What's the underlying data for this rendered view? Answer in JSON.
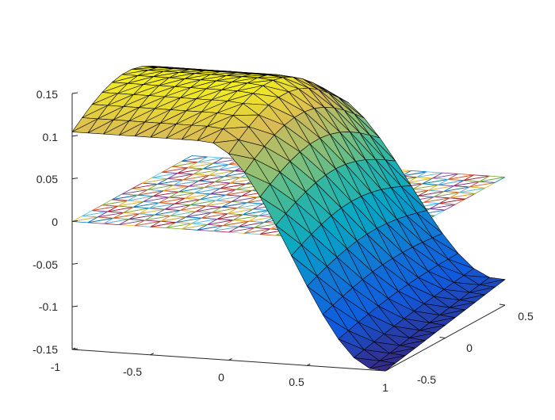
{
  "chart_data": {
    "type": "surface",
    "title": "",
    "xlabel": "",
    "ylabel": "",
    "zlabel": "",
    "xlim": [
      -1,
      1
    ],
    "ylim": [
      -0.5,
      0.5
    ],
    "zlim": [
      -0.15,
      0.15
    ],
    "x_ticks": [
      -1,
      -0.5,
      0,
      0.5,
      1
    ],
    "y_ticks": [
      -0.5,
      0,
      0.5
    ],
    "z_ticks": [
      -0.15,
      -0.1,
      -0.05,
      0,
      0.05,
      0.1,
      0.15
    ],
    "x_tick_labels": [
      "-1",
      "-0.5",
      "0",
      "0.5",
      "1"
    ],
    "y_tick_labels": [
      "-0.5",
      "0",
      "0.5"
    ],
    "z_tick_labels": [
      "-0.15",
      "-0.1",
      "-0.05",
      "0",
      "0.05",
      "0.1",
      "0.15"
    ],
    "grid": false,
    "colormap": "parula",
    "surfaces": [
      {
        "kind": "shaded-triangular-mesh",
        "edge_color": "#000000",
        "approx_values": [
          {
            "x": -1,
            "y": -0.5,
            "z": 0.1
          },
          {
            "x": -1,
            "y": 0.5,
            "z": 0.15
          },
          {
            "x": 0,
            "y": 0,
            "z": 0.07
          },
          {
            "x": 1,
            "y": -0.5,
            "z": -0.15
          },
          {
            "x": 1,
            "y": 0.5,
            "z": -0.12
          }
        ]
      },
      {
        "kind": "wireframe-triangular-mesh",
        "z": 0,
        "edge_colors": [
          "#0072BD",
          "#D95319",
          "#EDB120",
          "#7E2F8E",
          "#77AC30",
          "#4DBEEE",
          "#A2142F"
        ]
      }
    ]
  }
}
